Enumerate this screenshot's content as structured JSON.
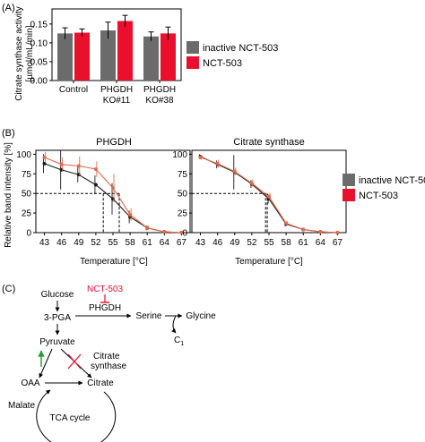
{
  "panel_labels": {
    "a": "(A)",
    "b": "(B)",
    "c": "(C)"
  },
  "colors": {
    "inactive": "#6b6b6b",
    "active": "#e8102c",
    "line_inactive": "#1a1a1a",
    "line_active": "#e06a4a"
  },
  "legend": {
    "inactive": "inactive NCT-503",
    "active": "NCT-503"
  },
  "chart_data": [
    {
      "type": "bar",
      "panel": "A",
      "ylabel_line1": "Citrate synthase activity",
      "ylabel_line2": "[µmol/mL/min]",
      "categories": [
        "Control",
        "PHGDH",
        "PHGDH"
      ],
      "category_sublabels": [
        "",
        "KO#11",
        "KO#38"
      ],
      "ylim": [
        0,
        0.19
      ],
      "yticks": [
        "0.00",
        "0.05",
        "0.10",
        "0.15"
      ],
      "series": [
        {
          "name": "inactive NCT-503",
          "values": [
            0.125,
            0.133,
            0.117
          ],
          "errors": [
            0.015,
            0.022,
            0.012
          ]
        },
        {
          "name": "NCT-503",
          "values": [
            0.127,
            0.158,
            0.125
          ],
          "errors": [
            0.01,
            0.015,
            0.017
          ]
        }
      ]
    },
    {
      "type": "line",
      "panel": "B-left",
      "title": "PHGDH",
      "xlabel": "Temperature [°C]",
      "ylabel": "Relative band intensity [%]",
      "x": [
        43,
        46,
        49,
        52,
        55,
        58,
        61,
        64,
        67
      ],
      "ylim": [
        0,
        105
      ],
      "yticks": [
        "0",
        "25",
        "50",
        "75",
        "100"
      ],
      "reference_y": 50,
      "melting_points": {
        "inactive": 53.3,
        "active": 56.1
      },
      "series": [
        {
          "name": "inactive NCT-503",
          "values": [
            88,
            80,
            74,
            61,
            43,
            20,
            6,
            1,
            0
          ],
          "errors": [
            12,
            25,
            10,
            12,
            20,
            8,
            3,
            1,
            0
          ]
        },
        {
          "name": "NCT-503",
          "values": [
            96,
            87,
            85,
            81,
            57,
            23,
            6,
            1,
            0
          ],
          "errors": [
            7,
            9,
            12,
            10,
            18,
            8,
            3,
            1,
            0
          ]
        }
      ]
    },
    {
      "type": "line",
      "panel": "B-right",
      "title": "Citrate synthase",
      "xlabel": "Temperature [°C]",
      "ylabel": "",
      "x": [
        43,
        46,
        49,
        52,
        55,
        58,
        61,
        64,
        67
      ],
      "ylim": [
        0,
        105
      ],
      "yticks": [
        "0",
        "25",
        "50",
        "75",
        "100"
      ],
      "reference_y": 50,
      "melting_points": {
        "inactive": 54.4,
        "active": 54.7
      },
      "series": [
        {
          "name": "inactive NCT-503",
          "values": [
            97,
            87,
            77,
            62,
            43,
            11,
            4,
            1,
            0
          ],
          "errors": [
            3,
            5,
            22,
            5,
            6,
            3,
            2,
            1,
            0
          ]
        },
        {
          "name": "NCT-503",
          "values": [
            96,
            88,
            78,
            63,
            46,
            12,
            4,
            1,
            0
          ],
          "errors": [
            3,
            5,
            5,
            5,
            5,
            3,
            2,
            1,
            0
          ]
        }
      ]
    }
  ],
  "pathway": {
    "glucose": "Glucose",
    "pga": "3-PGA",
    "inhibitor": "NCT-503",
    "enzyme": "PHGDH",
    "serine": "Serine",
    "glycine": "Glycine",
    "c1": "C",
    "c1_sub": "1",
    "pyruvate": "Pyruvate",
    "cs_line1": "Citrate",
    "cs_line2": "synthase",
    "oaa": "OAA",
    "citrate": "Citrate",
    "malate": "Malate",
    "tca": "TCA cycle"
  }
}
